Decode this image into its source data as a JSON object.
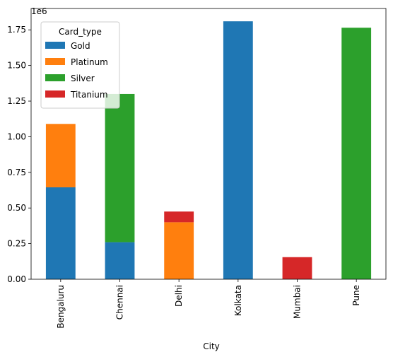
{
  "chart_data": {
    "type": "bar",
    "stacked": true,
    "title": "",
    "xlabel": "City",
    "ylabel": "",
    "y_offset_label": "1e6",
    "ylim": [
      0,
      1.9
    ],
    "yticks": [
      0,
      0.25,
      0.5,
      0.75,
      1.0,
      1.25,
      1.5,
      1.75
    ],
    "ytick_labels": [
      "0.00",
      "0.25",
      "0.50",
      "0.75",
      "1.00",
      "1.25",
      "1.50",
      "1.75"
    ],
    "categories": [
      "Bengaluru",
      "Chennai",
      "Delhi",
      "Kolkata",
      "Mumbai",
      "Pune"
    ],
    "legend_title": "Card_type",
    "legend_position": "top-left",
    "grid": false,
    "series": [
      {
        "name": "Gold",
        "color": "#1f77b4",
        "values": [
          0.645,
          0.26,
          0,
          1.81,
          0,
          0
        ]
      },
      {
        "name": "Platinum",
        "color": "#ff7f0e",
        "values": [
          0.445,
          0,
          0.4,
          0,
          0,
          0
        ]
      },
      {
        "name": "Silver",
        "color": "#2ca02c",
        "values": [
          0,
          1.04,
          0,
          0,
          0,
          1.765
        ]
      },
      {
        "name": "Titanium",
        "color": "#d62728",
        "values": [
          0,
          0,
          0.075,
          0,
          0.155,
          0
        ]
      }
    ]
  }
}
